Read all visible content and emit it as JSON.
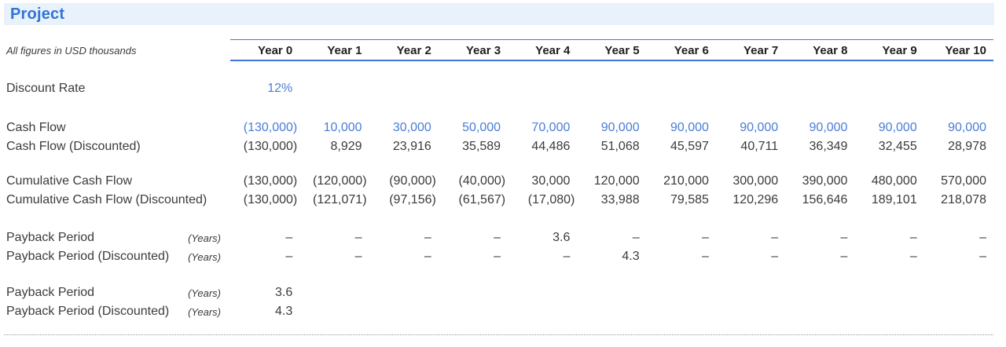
{
  "window": {
    "title": "Project"
  },
  "table": {
    "note": "All figures in USD thousands",
    "columns": [
      "Year 0",
      "Year 1",
      "Year 2",
      "Year 3",
      "Year 4",
      "Year 5",
      "Year 6",
      "Year 7",
      "Year 8",
      "Year 9",
      "Year 10"
    ],
    "groups": [
      {
        "rows": [
          {
            "label": "Discount Rate",
            "unit": "",
            "color": "blue",
            "values": [
              "12%",
              "",
              "",
              "",
              "",
              "",
              "",
              "",
              "",
              "",
              ""
            ]
          }
        ]
      },
      {
        "rows": [
          {
            "label": "Cash Flow",
            "unit": "",
            "color": "blue",
            "values": [
              "(130,000)",
              "10,000",
              "30,000",
              "50,000",
              "70,000",
              "90,000",
              "90,000",
              "90,000",
              "90,000",
              "90,000",
              "90,000"
            ]
          },
          {
            "label": "Cash Flow (Discounted)",
            "unit": "",
            "color": "black",
            "values": [
              "(130,000)",
              "8,929",
              "23,916",
              "35,589",
              "44,486",
              "51,068",
              "45,597",
              "40,711",
              "36,349",
              "32,455",
              "28,978"
            ]
          }
        ]
      },
      {
        "rows": [
          {
            "label": "Cumulative Cash Flow",
            "unit": "",
            "color": "black",
            "values": [
              "(130,000)",
              "(120,000)",
              "(90,000)",
              "(40,000)",
              "30,000",
              "120,000",
              "210,000",
              "300,000",
              "390,000",
              "480,000",
              "570,000"
            ]
          },
          {
            "label": "Cumulative Cash Flow (Discounted)",
            "unit": "",
            "color": "black",
            "values": [
              "(130,000)",
              "(121,071)",
              "(97,156)",
              "(61,567)",
              "(17,080)",
              "33,988",
              "79,585",
              "120,296",
              "156,646",
              "189,101",
              "218,078"
            ]
          }
        ]
      },
      {
        "rows": [
          {
            "label": "Payback Period",
            "unit": "(Years)",
            "color": "black",
            "values": [
              "–",
              "–",
              "–",
              "–",
              "3.6",
              "–",
              "–",
              "–",
              "–",
              "–",
              "–"
            ]
          },
          {
            "label": "Payback Period (Discounted)",
            "unit": "(Years)",
            "color": "black",
            "values": [
              "–",
              "–",
              "–",
              "–",
              "–",
              "4.3",
              "–",
              "–",
              "–",
              "–",
              "–"
            ]
          }
        ]
      },
      {
        "rows": [
          {
            "label": "Payback Period",
            "unit": "(Years)",
            "color": "black",
            "values": [
              "3.6",
              "",
              "",
              "",
              "",
              "",
              "",
              "",
              "",
              "",
              ""
            ]
          },
          {
            "label": "Payback Period (Discounted)",
            "unit": "(Years)",
            "color": "black",
            "values": [
              "4.3",
              "",
              "",
              "",
              "",
              "",
              "",
              "",
              "",
              "",
              ""
            ]
          }
        ]
      }
    ]
  },
  "colors": {
    "title_text": "#2e74d6",
    "title_background": "#e9f1fb",
    "header_border": "#4177d0",
    "value_blue": "#4a7cd9",
    "body_text": "#3b3b3b"
  }
}
